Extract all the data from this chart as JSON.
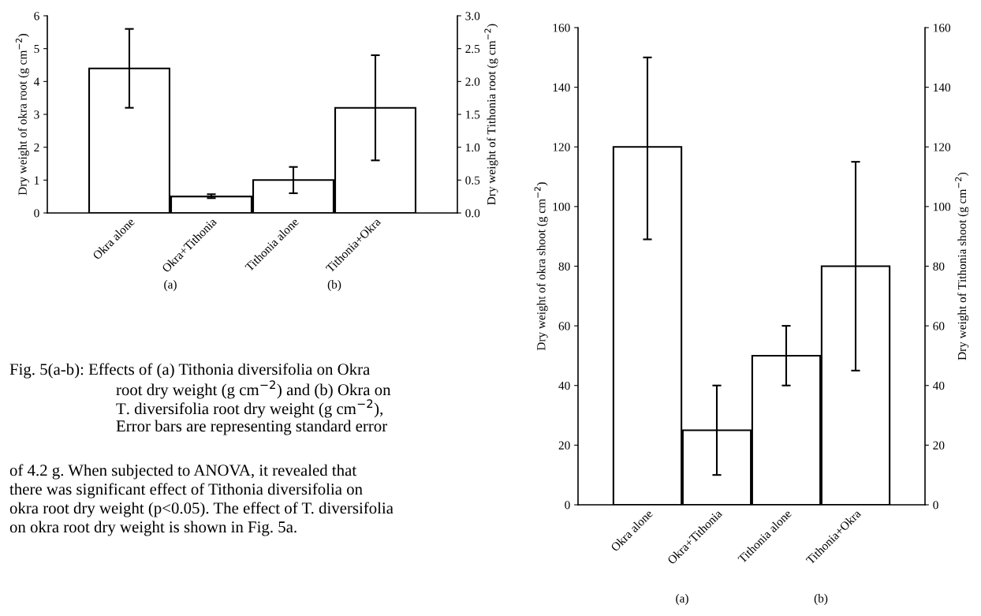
{
  "chart_data": [
    {
      "type": "bar",
      "categories": [
        "Okra alone",
        "Okra+Tithonia",
        "Tithonia alone",
        "Tithonia+Okra"
      ],
      "ylabel": "Dry weight of okra root (g cm$^{−2}$)",
      "y2label": "Dry weight of Tithonia root (g cm$^{−2}$)",
      "ylim": [
        0,
        6
      ],
      "yticks": [
        0,
        1,
        2,
        3,
        4,
        5,
        6
      ],
      "y2lim": [
        0,
        3
      ],
      "y2ticks": [
        {
          "value": 0,
          "label": "0.0"
        },
        {
          "value": 0.5,
          "label": "0.5"
        },
        {
          "value": 1,
          "label": "1.0"
        },
        {
          "value": 1.5,
          "label": "1.5"
        },
        {
          "value": 2,
          "label": "2.0"
        },
        {
          "value": 2.5,
          "label": "2.5"
        },
        {
          "value": 3,
          "label": "3.0"
        }
      ],
      "series": [
        {
          "color": "#ffffff",
          "values": [
            4.4,
            0.5,
            null,
            null
          ],
          "errors": [
            [
              3.2,
              5.6
            ],
            [
              0.45,
              0.57
            ],
            null,
            null
          ]
        },
        {
          "color": "#ffffff",
          "axis": "y2",
          "values": [
            null,
            null,
            0.5,
            1.6
          ],
          "errors": [
            null,
            null,
            [
              0.3,
              0.7
            ],
            [
              0.8,
              2.4
            ]
          ]
        }
      ],
      "annotations": [
        "(a)",
        "(b)",
        "Fig. 5(a-b): Effects of (a) Tithonia diversifolia on Okra",
        "root dry weight (g cm$^{−2}$) and (b) Okra on",
        "T. diversifolia root dry weight (g cm$^{−2}$),",
        "Error bars are representing standard error",
        "of 4.2 g. When subjected to ANOVA, it revealed that",
        "there was significant effect of Tithonia diversifolia on",
        "okra root dry weight (p<0.05). The effect of T. diversifolia",
        "on okra root dry weight is shown in Fig. 5a."
      ]
    },
    {
      "type": "bar",
      "categories": [
        "Okra alone",
        "Okra+Tithonia",
        "Tithonia alone",
        "Tithonia+Okra"
      ],
      "ylabel": "Dry weight of okra shoot (g cm$^{−2}$)",
      "y2label": "Dry weight of Tithonia shoot (g cm$^{−2}$)",
      "ylim": [
        0,
        160
      ],
      "yticks": [
        0,
        20,
        40,
        60,
        80,
        100,
        120,
        140,
        160
      ],
      "y2lim": [
        0,
        160
      ],
      "y2ticks": [
        0,
        20,
        40,
        60,
        80,
        100,
        120,
        140,
        160
      ],
      "series": [
        {
          "color": "#ffffff",
          "values": [
            120,
            25,
            null,
            null
          ],
          "errors": [
            [
              89,
              150
            ],
            [
              10,
              40
            ],
            null,
            null
          ]
        },
        {
          "color": "#ffffff",
          "axis": "y2",
          "values": [
            null,
            null,
            50,
            80
          ],
          "errors": [
            null,
            null,
            [
              40,
              60
            ],
            [
              45,
              115
            ]
          ]
        }
      ],
      "annotations": [
        "(a)",
        "(b)"
      ]
    }
  ]
}
